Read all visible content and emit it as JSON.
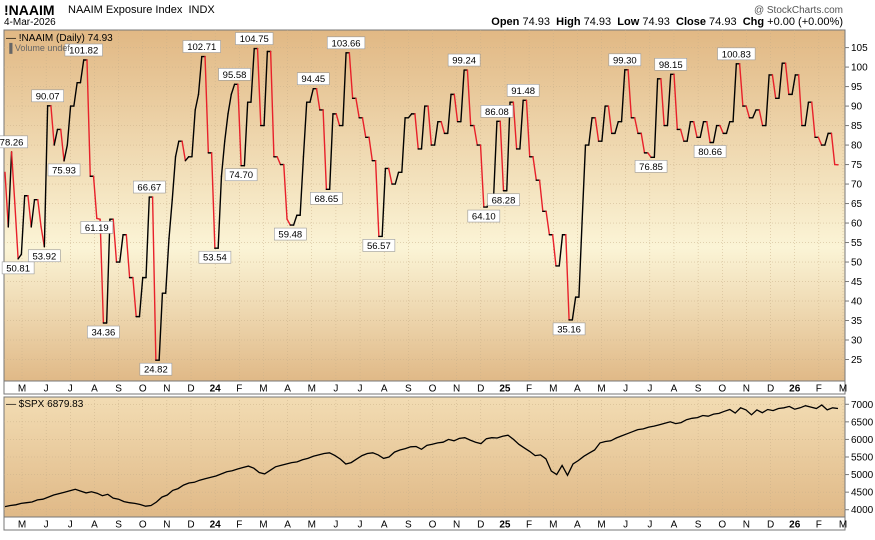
{
  "header": {
    "symbol": "!NAAIM",
    "name": "NAAIM Exposure Index",
    "exchange": "INDX",
    "date": "4-Mar-2026",
    "brand": "@ StockCharts.com",
    "ohlc": [
      {
        "label": "Open",
        "value": "74.93"
      },
      {
        "label": "High",
        "value": "74.93"
      },
      {
        "label": "Low",
        "value": "74.93"
      },
      {
        "label": "Close",
        "value": "74.93"
      },
      {
        "label": "Chg",
        "value": "+0.00 (+0.00%)"
      }
    ]
  },
  "colors": {
    "up": "#000000",
    "down": "#e8202a",
    "spx": "#000000"
  },
  "chart_data": [
    {
      "type": "line",
      "legend": "!NAAIM (Daily) 74.93",
      "legend2": "Volume undef",
      "ylim": [
        20,
        109
      ],
      "yticks": [
        25,
        30,
        35,
        40,
        45,
        50,
        55,
        60,
        65,
        70,
        75,
        80,
        85,
        90,
        95,
        100,
        105
      ],
      "x_labels": [
        "M",
        "J",
        "J",
        "A",
        "S",
        "O",
        "N",
        "D",
        "24",
        "F",
        "M",
        "A",
        "M",
        "J",
        "J",
        "A",
        "S",
        "O",
        "N",
        "D",
        "25",
        "F",
        "M",
        "A",
        "M",
        "J",
        "J",
        "A",
        "S",
        "O",
        "N",
        "D",
        "26",
        "F",
        "M"
      ],
      "series": [
        {
          "values": [
            73,
            59,
            78.26,
            65,
            50.81,
            52,
            67,
            67,
            59,
            66,
            66,
            59,
            53.92,
            90.07,
            90.07,
            80,
            84,
            84,
            75.93,
            80,
            90,
            90,
            96,
            96,
            101.82,
            101.82,
            72,
            72,
            61.19,
            61,
            34.36,
            34.36,
            61,
            61,
            50,
            50,
            57,
            57,
            46,
            46,
            36,
            36,
            46,
            46,
            66.67,
            66.67,
            24.82,
            24.82,
            42,
            42,
            56,
            66,
            77,
            81,
            81,
            76,
            77,
            77,
            89,
            93,
            102.71,
            102.71,
            78,
            78,
            53.54,
            53.54,
            72,
            81,
            88,
            93,
            95.58,
            95.58,
            74.7,
            74.7,
            91,
            91,
            104.75,
            104.75,
            85,
            85,
            104,
            104,
            77,
            77,
            75,
            75,
            61,
            59.48,
            59.48,
            62,
            62,
            77,
            91,
            91,
            94.45,
            94.45,
            89,
            89,
            68.65,
            68.65,
            88,
            88,
            85,
            85,
            103.66,
            103.66,
            92,
            92,
            87,
            87,
            82,
            82,
            76,
            76,
            56.57,
            56.57,
            74,
            74,
            70,
            70,
            73,
            73,
            87,
            87,
            88,
            88,
            79,
            79,
            90,
            90,
            80,
            80,
            86,
            86,
            83,
            83,
            93,
            93,
            86,
            86,
            99.24,
            99.24,
            85,
            85,
            80,
            80,
            64.1,
            64.1,
            67,
            67,
            86.08,
            86.08,
            68.28,
            68.28,
            91,
            91,
            79,
            79,
            91.48,
            91.48,
            77,
            77,
            71,
            71,
            63,
            63,
            57,
            57,
            49,
            49,
            57,
            57,
            35.16,
            35.16,
            41,
            41,
            61,
            80,
            80,
            87,
            87,
            81,
            81,
            90,
            90,
            83,
            83,
            86,
            86,
            99.3,
            99.3,
            87,
            87,
            83,
            83,
            78,
            78,
            76.85,
            76.85,
            97,
            97,
            85,
            85,
            98.15,
            98.15,
            84,
            84,
            81,
            81,
            86,
            86,
            82,
            82,
            86,
            86,
            80.66,
            80.66,
            85,
            85,
            83,
            83,
            86,
            86,
            100.83,
            100.83,
            90,
            90,
            87,
            87,
            89,
            89,
            85,
            85,
            98,
            98,
            92,
            92,
            101,
            101,
            93,
            93,
            98,
            98,
            85,
            85,
            91,
            91,
            82,
            82,
            80,
            80,
            83,
            83,
            75,
            74.93
          ]
        }
      ],
      "annotations": [
        {
          "value": 78.26,
          "label": "78.26",
          "pos": "above"
        },
        {
          "value": 50.81,
          "label": "50.81",
          "pos": "below"
        },
        {
          "value": 53.92,
          "label": "53.92",
          "pos": "below"
        },
        {
          "value": 90.07,
          "label": "90.07",
          "pos": "above"
        },
        {
          "value": 75.93,
          "label": "75.93",
          "pos": "below"
        },
        {
          "value": 101.82,
          "label": "101.82",
          "pos": "above"
        },
        {
          "value": 61.19,
          "label": "61.19",
          "pos": "below"
        },
        {
          "value": 34.36,
          "label": "34.36",
          "pos": "below"
        },
        {
          "value": 66.67,
          "label": "66.67",
          "pos": "above"
        },
        {
          "value": 24.82,
          "label": "24.82",
          "pos": "below"
        },
        {
          "value": 102.71,
          "label": "102.71",
          "pos": "above"
        },
        {
          "value": 53.54,
          "label": "53.54",
          "pos": "below"
        },
        {
          "value": 95.58,
          "label": "95.58",
          "pos": "above"
        },
        {
          "value": 74.7,
          "label": "74.70",
          "pos": "below"
        },
        {
          "value": 104.75,
          "label": "104.75",
          "pos": "above"
        },
        {
          "value": 59.48,
          "label": "59.48",
          "pos": "below"
        },
        {
          "value": 94.45,
          "label": "94.45",
          "pos": "above"
        },
        {
          "value": 68.65,
          "label": "68.65",
          "pos": "below"
        },
        {
          "value": 103.66,
          "label": "103.66",
          "pos": "above"
        },
        {
          "value": 56.57,
          "label": "56.57",
          "pos": "below"
        },
        {
          "value": 99.24,
          "label": "99.24",
          "pos": "above"
        },
        {
          "value": 64.1,
          "label": "64.10",
          "pos": "below"
        },
        {
          "value": 86.08,
          "label": "86.08",
          "pos": "above"
        },
        {
          "value": 68.28,
          "label": "68.28",
          "pos": "below"
        },
        {
          "value": 91.48,
          "label": "91.48",
          "pos": "above"
        },
        {
          "value": 35.16,
          "label": "35.16",
          "pos": "below"
        },
        {
          "value": 99.3,
          "label": "99.30",
          "pos": "above"
        },
        {
          "value": 76.85,
          "label": "76.85",
          "pos": "below"
        },
        {
          "value": 98.15,
          "label": "98.15",
          "pos": "above"
        },
        {
          "value": 80.66,
          "label": "80.66",
          "pos": "below"
        },
        {
          "value": 100.83,
          "label": "100.83",
          "pos": "above"
        }
      ]
    },
    {
      "type": "line",
      "legend": "$SPX 6879.83",
      "ylim": [
        3850,
        7150
      ],
      "yticks": [
        4000,
        4500,
        5000,
        5500,
        6000,
        6500,
        7000
      ],
      "x_labels": [
        "M",
        "J",
        "J",
        "A",
        "S",
        "O",
        "N",
        "D",
        "24",
        "F",
        "M",
        "A",
        "M",
        "J",
        "J",
        "A",
        "S",
        "O",
        "N",
        "D",
        "25",
        "F",
        "M",
        "A",
        "M",
        "J",
        "J",
        "A",
        "S",
        "O",
        "N",
        "D",
        "26",
        "F",
        "M"
      ],
      "series": [
        {
          "name": "$SPX",
          "values": [
            4090,
            4120,
            4140,
            4180,
            4200,
            4220,
            4280,
            4300,
            4360,
            4420,
            4460,
            4500,
            4540,
            4580,
            4530,
            4480,
            4510,
            4470,
            4400,
            4440,
            4330,
            4300,
            4230,
            4200,
            4180,
            4150,
            4100,
            4120,
            4220,
            4360,
            4420,
            4550,
            4600,
            4700,
            4760,
            4780,
            4840,
            4880,
            4920,
            4960,
            5020,
            5080,
            5110,
            5160,
            5200,
            5240,
            5180,
            5060,
            5020,
            5120,
            5220,
            5260,
            5300,
            5340,
            5360,
            5420,
            5460,
            5520,
            5560,
            5600,
            5620,
            5540,
            5440,
            5300,
            5340,
            5440,
            5540,
            5600,
            5620,
            5560,
            5460,
            5500,
            5640,
            5700,
            5740,
            5790,
            5800,
            5720,
            5830,
            5860,
            5900,
            5920,
            6000,
            5960,
            6030,
            6050,
            5980,
            5920,
            5880,
            6020,
            6050,
            6040,
            6090,
            6120,
            6000,
            5860,
            5760,
            5660,
            5540,
            5560,
            5450,
            5100,
            5000,
            5260,
            4980,
            5300,
            5400,
            5520,
            5610,
            5700,
            5900,
            5940,
            5960,
            6040,
            6100,
            6160,
            6220,
            6280,
            6300,
            6350,
            6380,
            6420,
            6460,
            6500,
            6450,
            6480,
            6560,
            6600,
            6620,
            6680,
            6660,
            6720,
            6740,
            6800,
            6850,
            6750,
            6900,
            6840,
            6700,
            6840,
            6760,
            6850,
            6820,
            6880,
            6900,
            6940,
            6860,
            6900,
            6960,
            6920,
            6880,
            6980,
            6840,
            6900,
            6879.83
          ]
        }
      ]
    }
  ]
}
